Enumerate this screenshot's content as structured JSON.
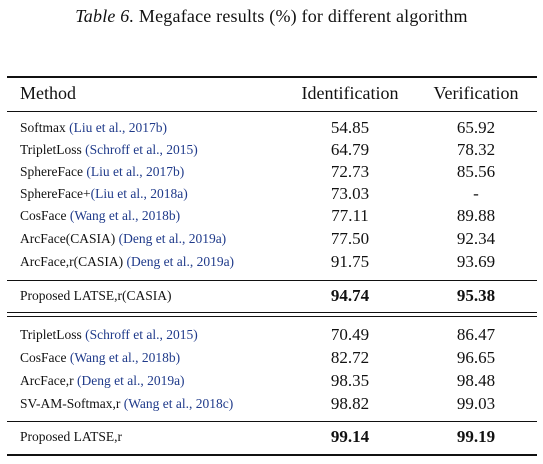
{
  "caption": {
    "label": "Table 6.",
    "text": "Megaface results (%) for different algorithm"
  },
  "header": {
    "method": "Method",
    "identification": "Identification",
    "verification": "Verification"
  },
  "rows": [
    {
      "method": "Softmax",
      "cite": "(Liu et al., 2017b)",
      "ident": "54.85",
      "verif": "65.92"
    },
    {
      "method": "TripletLoss",
      "cite": "(Schroff et al., 2015)",
      "ident": "64.79",
      "verif": "78.32"
    },
    {
      "method": "SphereFace",
      "cite": "(Liu et al., 2017b)",
      "ident": "72.73",
      "verif": "85.56"
    },
    {
      "method": "SphereFace+",
      "cite": "(Liu et al., 2018a)",
      "ident": "73.03",
      "verif": "-"
    },
    {
      "method": "CosFace",
      "cite": "(Wang et al., 2018b)",
      "ident": "77.11",
      "verif": "89.88"
    },
    {
      "method": "ArcFace(CASIA)",
      "cite": "(Deng et al., 2019a)",
      "ident": "77.50",
      "verif": "92.34"
    },
    {
      "method": "ArcFace,r(CASIA)",
      "cite": "(Deng et al., 2019a)",
      "ident": "91.75",
      "verif": "93.69"
    },
    {
      "method": "Proposed LATSE,r(CASIA)",
      "cite": "",
      "ident": "94.74",
      "verif": "95.38"
    },
    {
      "method": "TripletLoss",
      "cite": "(Schroff et al., 2015)",
      "ident": "70.49",
      "verif": "86.47"
    },
    {
      "method": "CosFace",
      "cite": "(Wang et al., 2018b)",
      "ident": "82.72",
      "verif": "96.65"
    },
    {
      "method": "ArcFace,r",
      "cite": "(Deng et al., 2019a)",
      "ident": "98.35",
      "verif": "98.48"
    },
    {
      "method": "SV-AM-Softmax,r",
      "cite": "(Wang et al., 2018c)",
      "ident": "98.82",
      "verif": "99.03"
    },
    {
      "method": "Proposed LATSE,r",
      "cite": "",
      "ident": "99.14",
      "verif": "99.19"
    }
  ]
}
